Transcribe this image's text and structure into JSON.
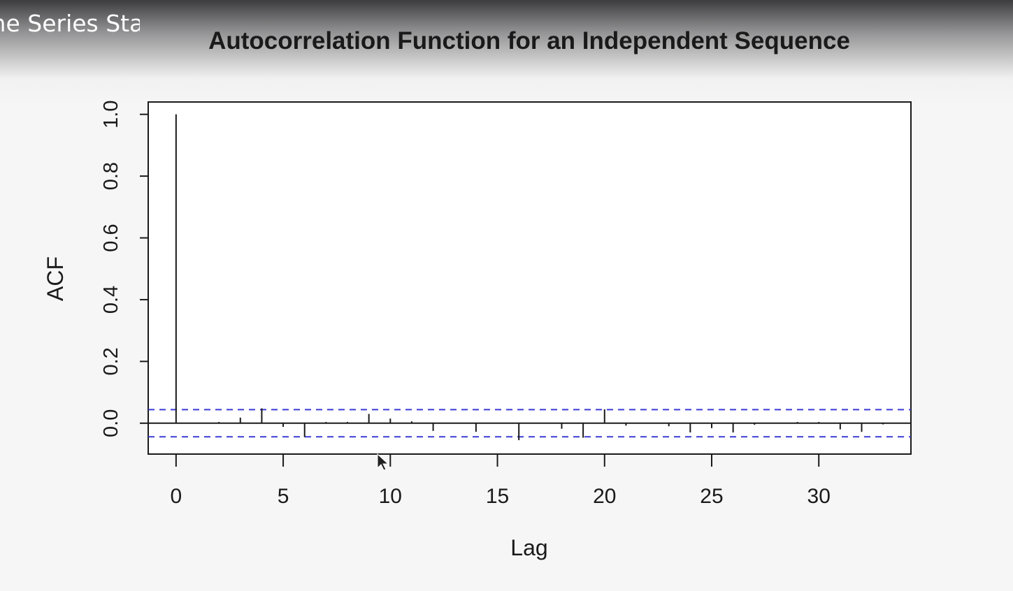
{
  "video": {
    "overlay_title": "Time Series Statistics"
  },
  "chart_data": {
    "type": "bar",
    "title": "Autocorrelation Function for an Independent Sequence",
    "xlabel": "Lag",
    "ylabel": "ACF",
    "xlim": [
      -1.3,
      34.3
    ],
    "ylim": [
      -0.1,
      1.04
    ],
    "x_ticks": [
      0,
      5,
      10,
      15,
      20,
      25,
      30
    ],
    "y_ticks": [
      0.0,
      0.2,
      0.4,
      0.6,
      0.8,
      1.0
    ],
    "y_tick_labels": [
      "0.0",
      "0.2",
      "0.4",
      "0.6",
      "0.8",
      "1.0"
    ],
    "lags": [
      0,
      1,
      2,
      3,
      4,
      5,
      6,
      7,
      8,
      9,
      10,
      11,
      12,
      13,
      14,
      15,
      16,
      17,
      18,
      19,
      20,
      21,
      22,
      23,
      24,
      25,
      26,
      27,
      28,
      29,
      30,
      31,
      32,
      33
    ],
    "acf": [
      1.0,
      0.001,
      0.004,
      0.018,
      0.048,
      -0.012,
      -0.045,
      0.004,
      0.004,
      0.03,
      0.015,
      0.006,
      -0.025,
      0.0,
      -0.028,
      0.0,
      -0.055,
      0.0,
      -0.018,
      -0.047,
      0.045,
      -0.008,
      0.0,
      -0.01,
      -0.03,
      -0.016,
      -0.03,
      -0.005,
      0.0,
      0.004,
      0.004,
      -0.02,
      -0.028,
      -0.004
    ],
    "confidence_bound": 0.044,
    "grid": false,
    "colors": {
      "bars": "#1a1a1a",
      "bounds": "#3b3bd6",
      "axes": "#1a1a1a"
    }
  }
}
